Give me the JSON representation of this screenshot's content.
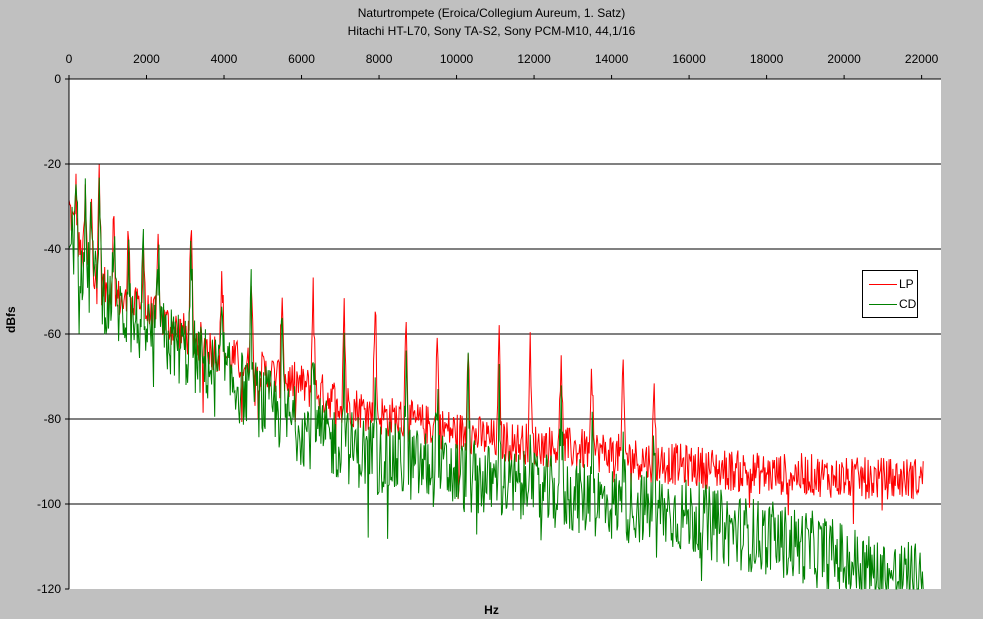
{
  "chart_data": {
    "type": "line",
    "title": "Naturtrompete (Eroica/Collegium Aureum, 1. Satz)",
    "subtitle": "Hitachi HT-L70, Sony TA-S2, Sony PCM-M10, 44,1/16",
    "xlabel": "Hz",
    "ylabel": "dBfs",
    "xlim": [
      0,
      22500
    ],
    "ylim": [
      -120,
      0
    ],
    "x_ticks": [
      "0",
      "2000",
      "4000",
      "6000",
      "8000",
      "10000",
      "12000",
      "14000",
      "16000",
      "18000",
      "20000",
      "22000"
    ],
    "y_ticks": [
      "0",
      "-20",
      "-40",
      "-60",
      "-80",
      "-100",
      "-120"
    ],
    "x_axis_position": "top",
    "grid": "horizontal",
    "legend_position": "right",
    "background": "#ffffff",
    "series": [
      {
        "name": "LP",
        "color": "#ff0000",
        "x": [
          0,
          250,
          500,
          1000,
          1500,
          2000,
          3000,
          4000,
          5000,
          6000,
          7000,
          8000,
          9000,
          10000,
          11000,
          12000,
          13000,
          14000,
          15000,
          16000,
          17000,
          18000,
          19000,
          20000,
          21000,
          22000
        ],
        "y": [
          -30,
          -40,
          -45,
          -50,
          -53,
          -55,
          -60,
          -65,
          -69,
          -72,
          -76,
          -79,
          -81,
          -83,
          -85,
          -86,
          -87,
          -88,
          -90,
          -91,
          -92,
          -93,
          -93,
          -94,
          -94,
          -94
        ]
      },
      {
        "name": "CD",
        "color": "#008000",
        "x": [
          0,
          250,
          500,
          1000,
          1500,
          2000,
          3000,
          4000,
          5000,
          6000,
          7000,
          8000,
          9000,
          10000,
          11000,
          12000,
          13000,
          14000,
          15000,
          16000,
          17000,
          18000,
          19000,
          20000,
          21000,
          22000
        ],
        "y": [
          -35,
          -42,
          -47,
          -52,
          -56,
          -59,
          -64,
          -70,
          -76,
          -82,
          -86,
          -89,
          -91,
          -93,
          -95,
          -97,
          -98,
          -100,
          -101,
          -103,
          -106,
          -108,
          -110,
          -113,
          -117,
          -118
        ]
      }
    ],
    "peaks": {
      "x": [
        180,
        420,
        580,
        780,
        1150,
        1540,
        1920,
        2310,
        3150,
        3950,
        4700,
        5500,
        6300,
        7100,
        7900,
        8700,
        9500,
        10300,
        11100,
        11900,
        12700,
        13500,
        14300,
        15100
      ],
      "y": [
        -26,
        -28,
        -24,
        -20,
        -32,
        -33,
        -38,
        -34,
        -34,
        -45,
        -44,
        -48,
        -47,
        -52,
        -50,
        -54,
        -60,
        -60,
        -62,
        -64,
        -63,
        -64,
        -68,
        -74
      ]
    }
  }
}
